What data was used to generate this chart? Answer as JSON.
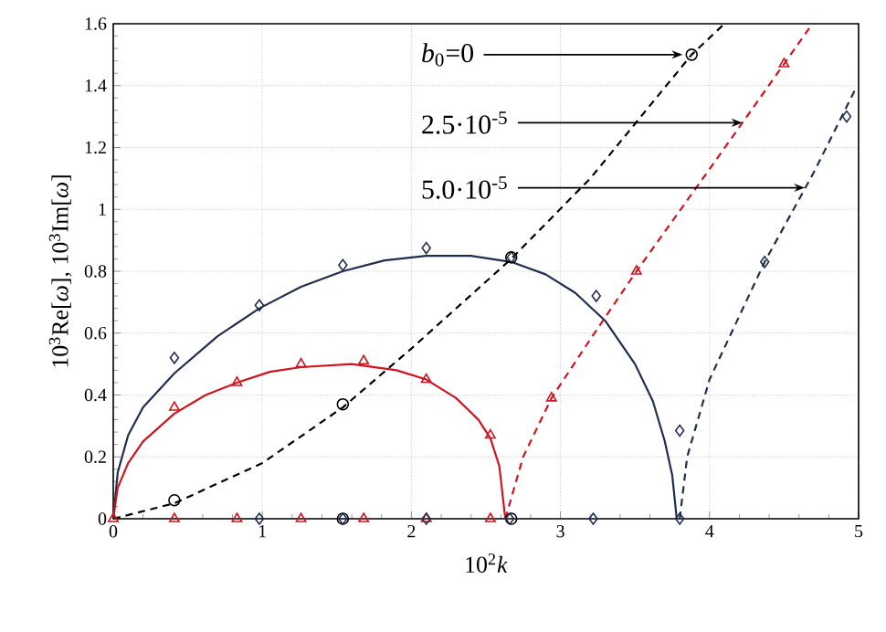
{
  "chart_data": {
    "type": "line",
    "xlabel": "10$^{2}$*k*",
    "ylabel": "10$^{3}$Re[*ω*], 10$^{3}$Im[*ω*]",
    "xlim": [
      0,
      5
    ],
    "xticks": [
      0,
      1,
      2,
      3,
      4,
      5
    ],
    "ylim": [
      0,
      1.6
    ],
    "yticks": [
      0,
      0.2,
      0.4,
      0.6,
      0.8,
      1,
      1.2,
      1.4,
      1.6
    ],
    "grid": true,
    "series": [
      {
        "line_style": "solid",
        "color": "#1f2d4f",
        "x": [
          0,
          0.03,
          0.1,
          0.2,
          0.41,
          0.7,
          0.98,
          1.26,
          1.54,
          1.82,
          2.1,
          2.4,
          2.67,
          2.9,
          3.1,
          3.3,
          3.5,
          3.62,
          3.7,
          3.75,
          3.78
        ],
        "values": [
          0,
          0.15,
          0.27,
          0.36,
          0.47,
          0.59,
          0.68,
          0.75,
          0.8,
          0.835,
          0.85,
          0.85,
          0.83,
          0.79,
          0.73,
          0.64,
          0.5,
          0.38,
          0.25,
          0.14,
          0
        ]
      },
      {
        "line_style": "solid",
        "color": "#d0141e",
        "x": [
          0,
          0.03,
          0.1,
          0.2,
          0.41,
          0.62,
          0.83,
          1.05,
          1.26,
          1.6,
          1.9,
          2.1,
          2.3,
          2.45,
          2.53,
          2.59,
          2.63
        ],
        "values": [
          0,
          0.1,
          0.18,
          0.25,
          0.34,
          0.4,
          0.44,
          0.475,
          0.49,
          0.5,
          0.48,
          0.45,
          0.39,
          0.32,
          0.26,
          0.17,
          0
        ]
      },
      {
        "line_style": "dashed",
        "color": "#000000",
        "x": [
          0,
          0.41,
          1.0,
          1.54,
          2.0,
          2.67,
          3.2,
          3.88,
          4.1
        ],
        "values": [
          0,
          0.05,
          0.18,
          0.36,
          0.55,
          0.84,
          1.1,
          1.5,
          1.6
        ]
      },
      {
        "line_style": "dashed",
        "color": "#d0141e",
        "x": [
          2.63,
          2.75,
          2.94,
          3.2,
          3.51,
          4.0,
          4.5,
          4.69
        ],
        "values": [
          0,
          0.2,
          0.39,
          0.58,
          0.8,
          1.13,
          1.47,
          1.6
        ]
      },
      {
        "line_style": "dashed",
        "color": "#1f2d4f",
        "x": [
          3.8,
          3.85,
          4.0,
          4.37,
          4.7,
          4.98
        ],
        "values": [
          0,
          0.2,
          0.45,
          0.83,
          1.12,
          1.39
        ]
      },
      {
        "type": "scatter",
        "marker": "diamond",
        "color": "#1f2d4f",
        "x": [
          0.41,
          0.98,
          1.54,
          2.1,
          2.67,
          3.24,
          3.8
        ],
        "values": [
          0.52,
          0.69,
          0.82,
          0.875,
          0.845,
          0.72,
          0.285
        ]
      },
      {
        "type": "scatter",
        "marker": "triangle",
        "color": "#d0141e",
        "x": [
          0.41,
          0.83,
          1.26,
          1.68,
          2.1,
          2.53
        ],
        "values": [
          0.36,
          0.44,
          0.5,
          0.51,
          0.45,
          0.27
        ]
      },
      {
        "type": "scatter",
        "marker": "circle",
        "color": "#000000",
        "x": [
          0.41,
          1.54,
          2.67,
          3.88,
          1.54,
          2.67
        ],
        "values": [
          0.06,
          0.37,
          0.845,
          1.5,
          0,
          0
        ]
      },
      {
        "type": "scatter",
        "marker": "triangle",
        "color": "#d0141e",
        "x": [
          0,
          0.41,
          0.83,
          1.26,
          1.68,
          2.1,
          2.53,
          2.94,
          3.51,
          4.5
        ],
        "values": [
          0,
          0,
          0,
          0,
          0,
          0,
          0,
          0.39,
          0.8,
          1.47
        ]
      },
      {
        "type": "scatter",
        "marker": "diamond",
        "color": "#1f2d4f",
        "x": [
          0.98,
          1.54,
          2.1,
          2.66,
          3.22,
          3.8,
          4.37,
          4.92
        ],
        "values": [
          0,
          0,
          0,
          0,
          0,
          0,
          0.83,
          1.3
        ]
      }
    ],
    "annotations": [
      {
        "text": "*b*$_{0}$=0",
        "x": 3.82,
        "y": 1.5
      },
      {
        "text": "2.5·10$^{-5}$",
        "x": 4.22,
        "y": 1.28
      },
      {
        "text": "5.0·10$^{-5}$",
        "x": 4.64,
        "y": 1.07
      }
    ]
  }
}
